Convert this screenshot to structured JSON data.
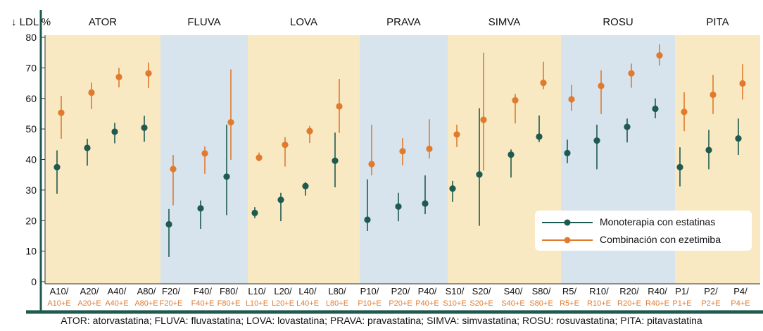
{
  "chart_data": {
    "type": "scatter",
    "ylabel": "↓ LDL %",
    "ylim": [
      0,
      80
    ],
    "yticks": [
      0,
      10,
      20,
      30,
      40,
      50,
      60,
      70,
      80
    ],
    "groups": [
      {
        "name": "ATOR",
        "categories": [
          "A10/",
          "A20/",
          "A40/",
          "A80/"
        ],
        "comb_labels": [
          "A10+E",
          "A20+E",
          "A40+E",
          "A80+E"
        ]
      },
      {
        "name": "FLUVA",
        "categories": [
          "F20/",
          "F40/",
          "F80/"
        ],
        "comb_labels": [
          "F20+E",
          "F40+E",
          "F80+E"
        ]
      },
      {
        "name": "LOVA",
        "categories": [
          "L10/",
          "L20/",
          "L40/",
          "L80/"
        ],
        "comb_labels": [
          "L10+E",
          "L20+E",
          "L40+E",
          "L80+E"
        ]
      },
      {
        "name": "PRAVA",
        "categories": [
          "P10/",
          "P20/",
          "P40/"
        ],
        "comb_labels": [
          "P10+E",
          "P20+E",
          "P40+E"
        ]
      },
      {
        "name": "SIMVA",
        "categories": [
          "S10/",
          "S20/",
          "S40/",
          "S80/"
        ],
        "comb_labels": [
          "S10+E",
          "S20+E",
          "S40+E",
          "S80+E"
        ]
      },
      {
        "name": "ROSU",
        "categories": [
          "R5/",
          "R10/",
          "R20/",
          "R40/"
        ],
        "comb_labels": [
          "R5+E",
          "R10+E",
          "R20+E",
          "R40+E"
        ]
      },
      {
        "name": "PITA",
        "categories": [
          "P1/",
          "P2/",
          "P4/"
        ],
        "comb_labels": [
          "P1+E",
          "P2+E",
          "P4+E"
        ]
      }
    ],
    "series": [
      {
        "name": "Monoterapia con estatinas",
        "color": "#1f5a4f",
        "values": [
          37.5,
          43.8,
          49.1,
          50.4,
          18.8,
          24.0,
          34.4,
          22.5,
          26.8,
          31.3,
          39.6,
          20.3,
          24.6,
          25.6,
          30.5,
          35.1,
          41.6,
          47.5,
          42.1,
          46.2,
          50.7,
          56.6,
          37.5,
          43.1,
          46.9
        ],
        "low": [
          28.8,
          38.0,
          45.3,
          45.8,
          8.1,
          17.3,
          21.8,
          20.8,
          19.8,
          28.2,
          30.9,
          16.6,
          19.8,
          22.1,
          26.1,
          18.3,
          34.1,
          45.7,
          38.8,
          36.8,
          45.6,
          53.5,
          31.2,
          36.8,
          41.5
        ],
        "high": [
          43.0,
          46.8,
          52.0,
          54.3,
          23.8,
          26.6,
          51.4,
          24.4,
          29.1,
          32.6,
          48.8,
          33.5,
          29.1,
          34.8,
          33.0,
          56.8,
          43.3,
          54.4,
          46.5,
          51.4,
          53.4,
          60.0,
          44.0,
          49.7,
          53.4
        ]
      },
      {
        "name": "Combinación con ezetimiba",
        "color": "#e07b2e",
        "values": [
          55.3,
          61.9,
          67.0,
          68.2,
          36.9,
          42.0,
          52.2,
          40.6,
          44.8,
          49.3,
          57.4,
          38.5,
          42.7,
          43.5,
          48.2,
          53.0,
          59.4,
          65.1,
          59.7,
          64.1,
          68.2,
          74.1,
          55.6,
          61.2,
          64.9
        ],
        "low": [
          46.8,
          56.5,
          63.6,
          63.4,
          25.0,
          35.3,
          39.9,
          39.4,
          37.7,
          45.4,
          48.7,
          34.8,
          38.1,
          40.3,
          44.1,
          36.4,
          51.8,
          63.0,
          55.9,
          54.9,
          63.5,
          70.8,
          49.3,
          54.9,
          59.6
        ],
        "high": [
          60.8,
          65.2,
          70.0,
          71.8,
          41.5,
          44.3,
          69.5,
          42.3,
          47.3,
          51.0,
          66.4,
          51.4,
          47.0,
          53.2,
          51.4,
          75.0,
          61.5,
          72.0,
          64.5,
          69.2,
          71.4,
          77.7,
          62.0,
          67.7,
          71.2
        ]
      }
    ],
    "legend_position": "lower-right",
    "grid": false,
    "band_colors": [
      "#f8e9c3",
      "#d7e4ee"
    ],
    "axis_color": "#1f5a4f"
  },
  "footnote": "ATOR: atorvastatina; FLUVA: fluvastatina; LOVA: lovastatina; PRAVA: pravastatina; SIMVA: simvastatina; ROSU: rosuvastatina; PITA: pitavastatina"
}
